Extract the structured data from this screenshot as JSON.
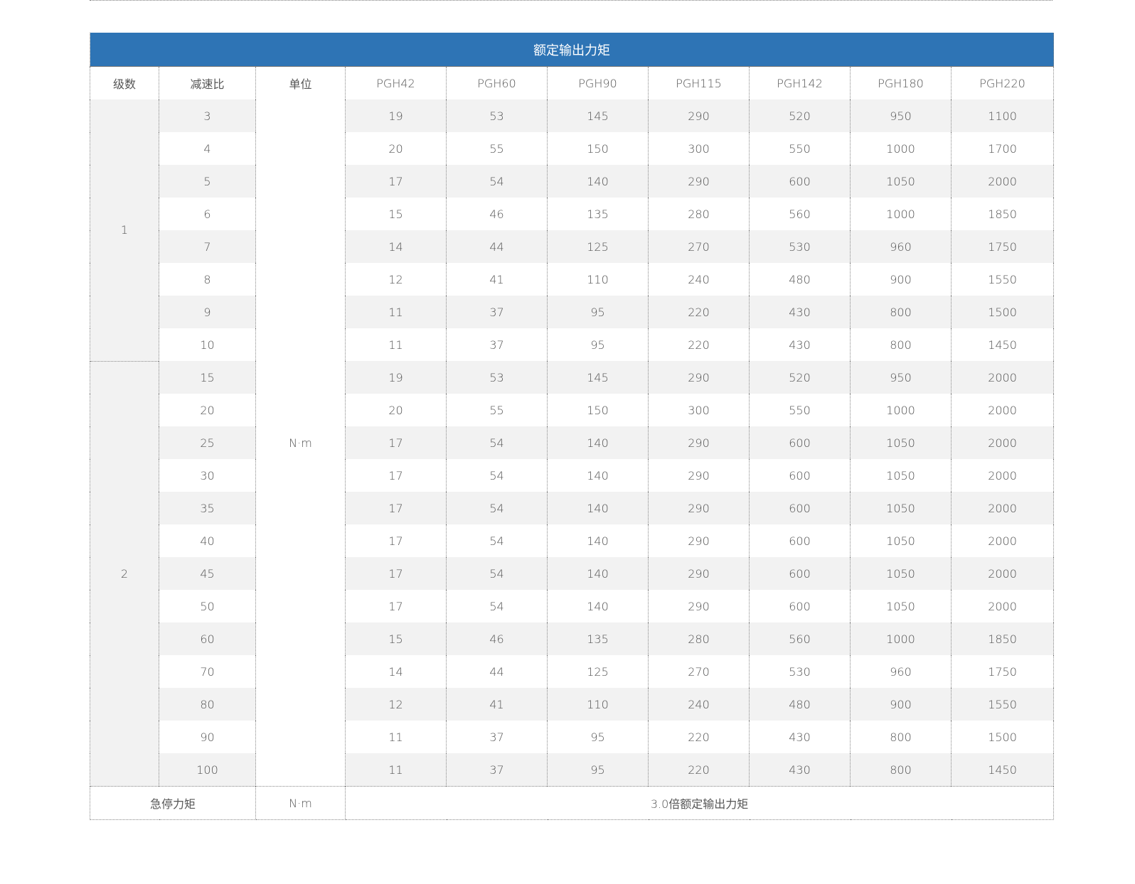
{
  "title": "额定输出力矩",
  "headers": [
    "级数",
    "减速比",
    "单位",
    "PGH42",
    "PGH60",
    "PGH90",
    "PGH115",
    "PGH142",
    "PGH180",
    "PGH220"
  ],
  "unit": "N·m",
  "stage_groups": [
    {
      "level": "1",
      "rows": [
        {
          "ratio": "3",
          "values": [
            "19",
            "53",
            "145",
            "290",
            "520",
            "950",
            "1100"
          ]
        },
        {
          "ratio": "4",
          "values": [
            "20",
            "55",
            "150",
            "300",
            "550",
            "1000",
            "1700"
          ]
        },
        {
          "ratio": "5",
          "values": [
            "17",
            "54",
            "140",
            "290",
            "600",
            "1050",
            "2000"
          ]
        },
        {
          "ratio": "6",
          "values": [
            "15",
            "46",
            "135",
            "280",
            "560",
            "1000",
            "1850"
          ]
        },
        {
          "ratio": "7",
          "values": [
            "14",
            "44",
            "125",
            "270",
            "530",
            "960",
            "1750"
          ]
        },
        {
          "ratio": "8",
          "values": [
            "12",
            "41",
            "110",
            "240",
            "480",
            "900",
            "1550"
          ]
        },
        {
          "ratio": "9",
          "values": [
            "11",
            "37",
            "95",
            "220",
            "430",
            "800",
            "1500"
          ]
        },
        {
          "ratio": "10",
          "values": [
            "11",
            "37",
            "95",
            "220",
            "430",
            "800",
            "1450"
          ]
        }
      ]
    },
    {
      "level": "2",
      "rows": [
        {
          "ratio": "15",
          "values": [
            "19",
            "53",
            "145",
            "290",
            "520",
            "950",
            "2000"
          ]
        },
        {
          "ratio": "20",
          "values": [
            "20",
            "55",
            "150",
            "300",
            "550",
            "1000",
            "2000"
          ]
        },
        {
          "ratio": "25",
          "values": [
            "17",
            "54",
            "140",
            "290",
            "600",
            "1050",
            "2000"
          ]
        },
        {
          "ratio": "30",
          "values": [
            "17",
            "54",
            "140",
            "290",
            "600",
            "1050",
            "2000"
          ]
        },
        {
          "ratio": "35",
          "values": [
            "17",
            "54",
            "140",
            "290",
            "600",
            "1050",
            "2000"
          ]
        },
        {
          "ratio": "40",
          "values": [
            "17",
            "54",
            "140",
            "290",
            "600",
            "1050",
            "2000"
          ]
        },
        {
          "ratio": "45",
          "values": [
            "17",
            "54",
            "140",
            "290",
            "600",
            "1050",
            "2000"
          ]
        },
        {
          "ratio": "50",
          "values": [
            "17",
            "54",
            "140",
            "290",
            "600",
            "1050",
            "2000"
          ]
        },
        {
          "ratio": "60",
          "values": [
            "15",
            "46",
            "135",
            "280",
            "560",
            "1000",
            "1850"
          ]
        },
        {
          "ratio": "70",
          "values": [
            "14",
            "44",
            "125",
            "270",
            "530",
            "960",
            "1750"
          ]
        },
        {
          "ratio": "80",
          "values": [
            "12",
            "41",
            "110",
            "240",
            "480",
            "900",
            "1550"
          ]
        },
        {
          "ratio": "90",
          "values": [
            "11",
            "37",
            "95",
            "220",
            "430",
            "800",
            "1500"
          ]
        },
        {
          "ratio": "100",
          "values": [
            "11",
            "37",
            "95",
            "220",
            "430",
            "800",
            "1450"
          ]
        }
      ]
    }
  ],
  "footer": {
    "label": "急停力矩",
    "unit": "N·m",
    "value": "3.0倍额定输出力矩"
  },
  "colors": {
    "title_bar": "#2e74b5",
    "stripe": "#f2f2f2"
  }
}
